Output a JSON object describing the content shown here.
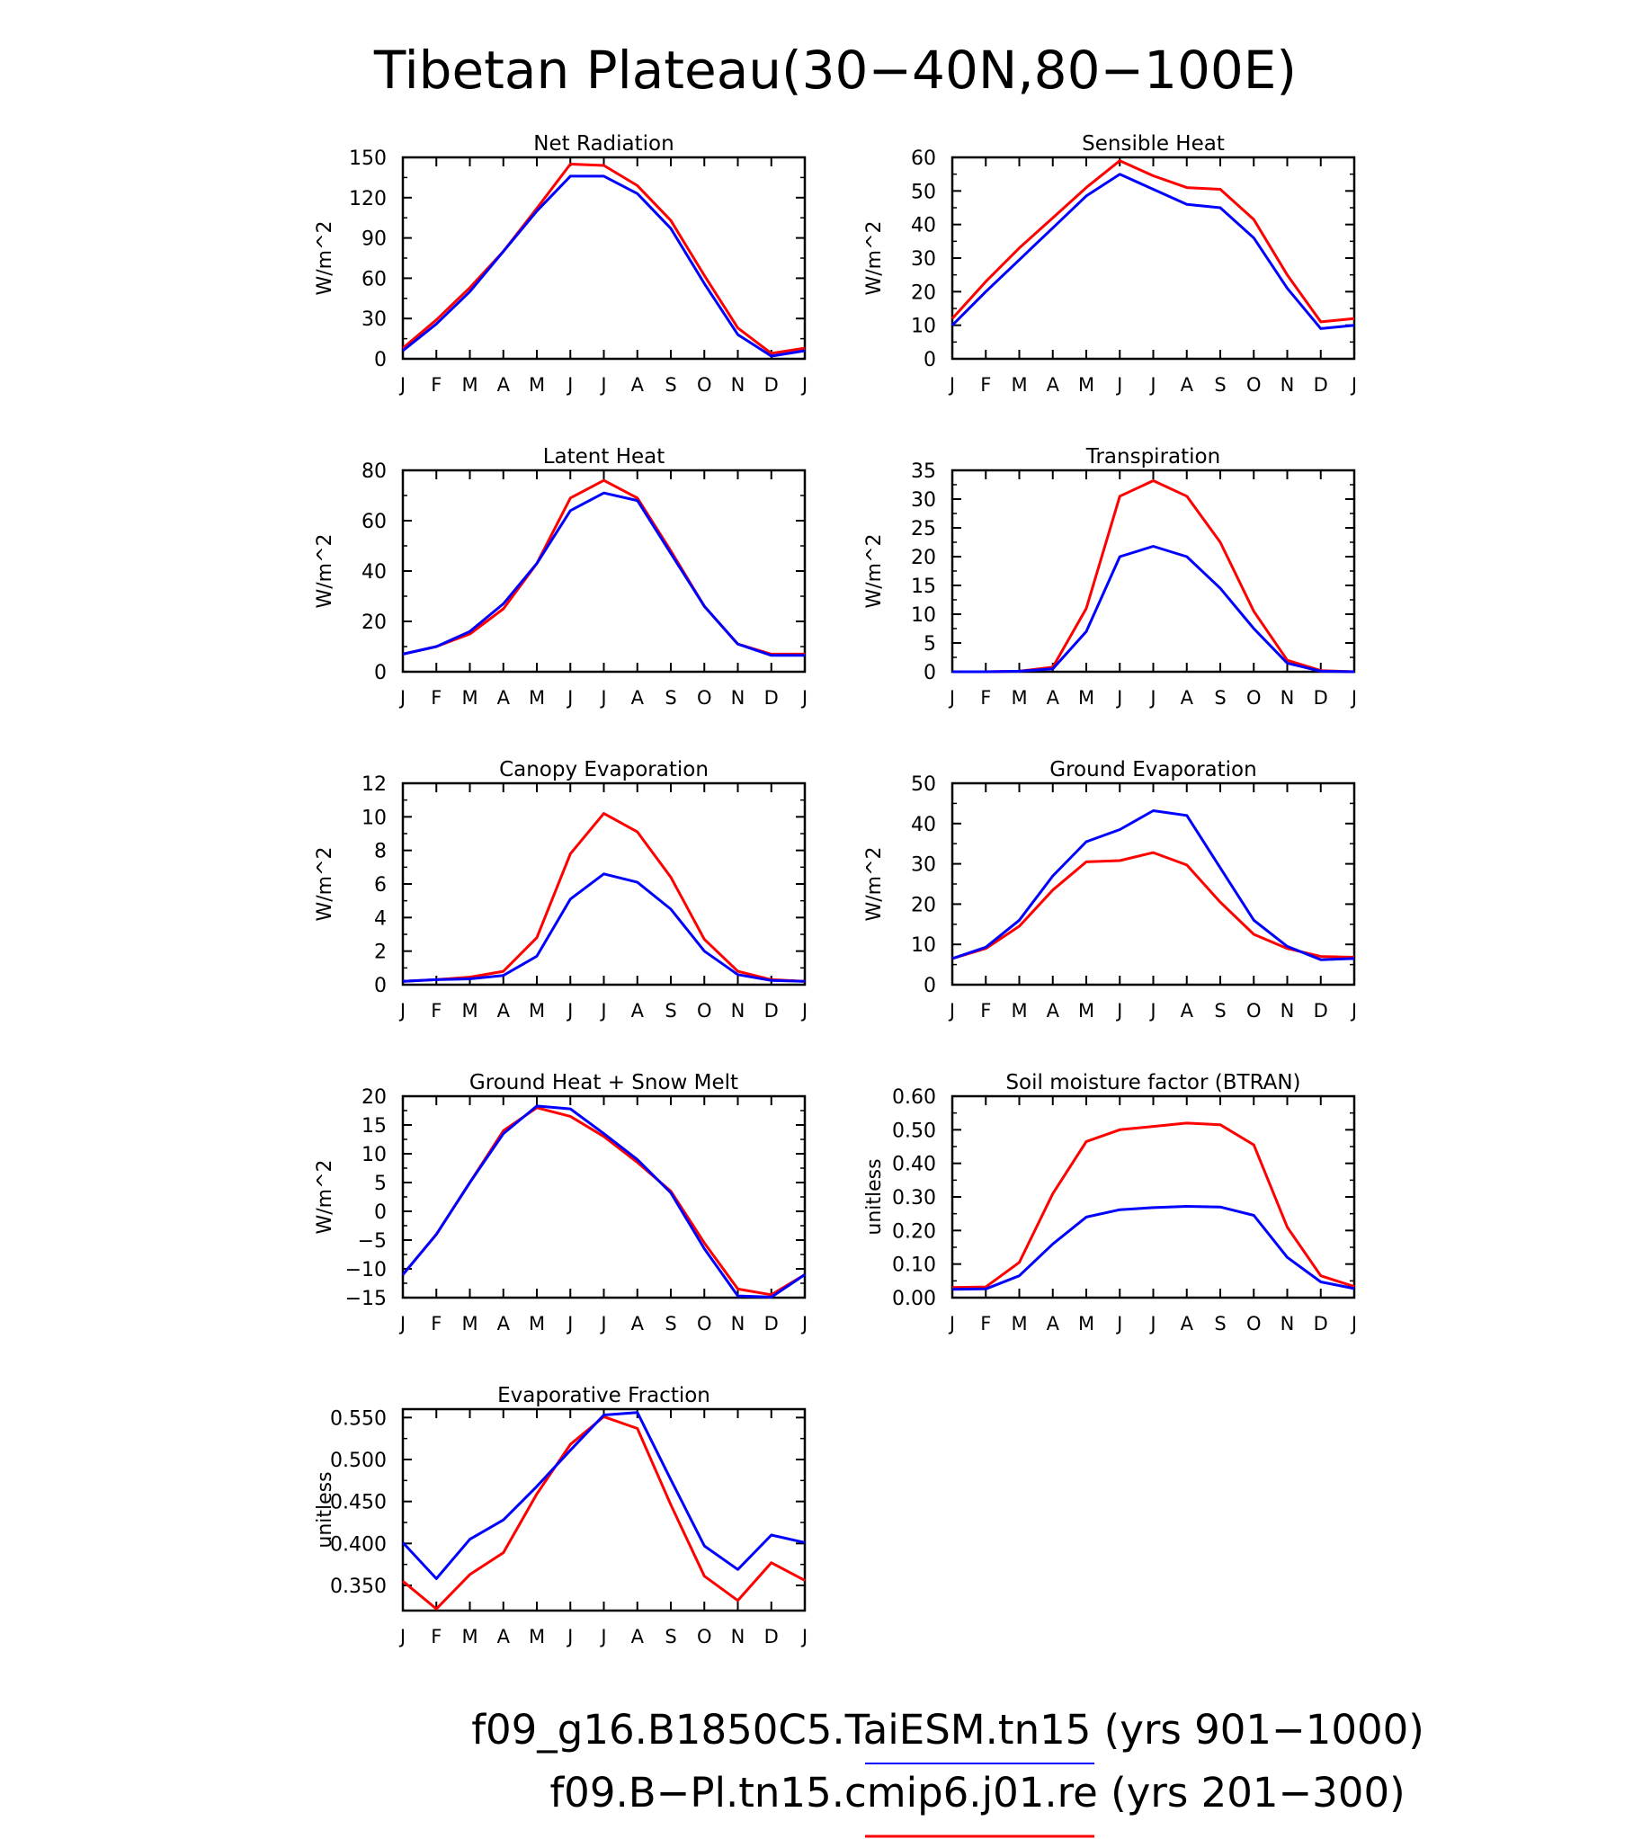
{
  "figure": {
    "title": "Tibetan Plateau(30−40N,80−100E)",
    "series_colors": {
      "taiesm": "#0000ff",
      "cmip6": "#ff0000"
    },
    "legend": [
      {
        "label": "f09_g16.B1850C5.TaiESM.tn15 (yrs 901−1000)",
        "color": "#0000ff"
      },
      {
        "label": "f09.B−Pl.tn15.cmip6.j01.re (yrs 201−300)",
        "color": "#ff0000"
      }
    ]
  },
  "chart_data": [
    {
      "type": "line",
      "title": "Net Radiation",
      "ylabel": "W/m^2",
      "ylim": [
        0,
        150
      ],
      "yticks": [
        "0",
        "30",
        "60",
        "90",
        "120",
        "150"
      ],
      "categories": [
        "J",
        "F",
        "M",
        "A",
        "M",
        "J",
        "J",
        "A",
        "S",
        "O",
        "N",
        "D",
        "J"
      ],
      "series": [
        {
          "color": "#ff0000",
          "values": [
            8,
            29,
            53,
            80,
            112,
            145,
            144,
            129,
            103,
            62,
            23,
            4,
            8
          ]
        },
        {
          "color": "#0000ff",
          "values": [
            6,
            26,
            50,
            80,
            110,
            136,
            136,
            123,
            97,
            56,
            18,
            2,
            6
          ]
        }
      ]
    },
    {
      "type": "line",
      "title": "Sensible Heat",
      "ylabel": "W/m^2",
      "ylim": [
        0,
        60
      ],
      "yticks": [
        "0",
        "10",
        "20",
        "30",
        "40",
        "50",
        "60"
      ],
      "categories": [
        "J",
        "F",
        "M",
        "A",
        "M",
        "J",
        "J",
        "A",
        "S",
        "O",
        "N",
        "D",
        "J"
      ],
      "series": [
        {
          "color": "#ff0000",
          "values": [
            12,
            23,
            33,
            42,
            51,
            59,
            54.5,
            51,
            50.5,
            41.5,
            25,
            11,
            12
          ]
        },
        {
          "color": "#0000ff",
          "values": [
            10,
            20,
            29.5,
            39,
            48.5,
            55,
            50.5,
            46,
            45,
            36,
            21,
            9,
            10
          ]
        }
      ]
    },
    {
      "type": "line",
      "title": "Latent Heat",
      "ylabel": "W/m^2",
      "ylim": [
        0,
        80
      ],
      "yticks": [
        "0",
        "20",
        "40",
        "60",
        "80"
      ],
      "categories": [
        "J",
        "F",
        "M",
        "A",
        "M",
        "J",
        "J",
        "A",
        "S",
        "O",
        "N",
        "D",
        "J"
      ],
      "series": [
        {
          "color": "#ff0000",
          "values": [
            7,
            10,
            15,
            25,
            43,
            69,
            76,
            69,
            48,
            26,
            11,
            7,
            7
          ]
        },
        {
          "color": "#0000ff",
          "values": [
            7,
            10,
            16,
            27,
            43,
            64,
            71,
            68,
            47,
            26,
            11,
            6.5,
            6.5
          ]
        }
      ]
    },
    {
      "type": "line",
      "title": "Transpiration",
      "ylabel": "W/m^2",
      "ylim": [
        0,
        35
      ],
      "yticks": [
        "0",
        "5",
        "10",
        "15",
        "20",
        "25",
        "30",
        "35"
      ],
      "categories": [
        "J",
        "F",
        "M",
        "A",
        "M",
        "J",
        "J",
        "A",
        "S",
        "O",
        "N",
        "D",
        "J"
      ],
      "series": [
        {
          "color": "#ff0000",
          "values": [
            0,
            0,
            0.1,
            0.8,
            11,
            30.5,
            33.2,
            30.5,
            22.5,
            10.5,
            2,
            0.2,
            0
          ]
        },
        {
          "color": "#0000ff",
          "values": [
            0,
            0,
            0.1,
            0.5,
            7,
            20,
            21.8,
            20,
            14.5,
            7.5,
            1.5,
            0.1,
            0
          ]
        }
      ]
    },
    {
      "type": "line",
      "title": "Canopy Evaporation",
      "ylabel": "W/m^2",
      "ylim": [
        0,
        12
      ],
      "yticks": [
        "0",
        "2",
        "4",
        "6",
        "8",
        "10",
        "12"
      ],
      "categories": [
        "J",
        "F",
        "M",
        "A",
        "M",
        "J",
        "J",
        "A",
        "S",
        "O",
        "N",
        "D",
        "J"
      ],
      "series": [
        {
          "color": "#ff0000",
          "values": [
            0.2,
            0.3,
            0.45,
            0.8,
            2.8,
            7.8,
            10.2,
            9.1,
            6.4,
            2.7,
            0.8,
            0.3,
            0.2
          ]
        },
        {
          "color": "#0000ff",
          "values": [
            0.2,
            0.3,
            0.35,
            0.55,
            1.7,
            5.1,
            6.6,
            6.1,
            4.5,
            2.0,
            0.6,
            0.25,
            0.2
          ]
        }
      ]
    },
    {
      "type": "line",
      "title": "Ground Evaporation",
      "ylabel": "W/m^2",
      "ylim": [
        0,
        50
      ],
      "yticks": [
        "0",
        "10",
        "20",
        "30",
        "40",
        "50"
      ],
      "categories": [
        "J",
        "F",
        "M",
        "A",
        "M",
        "J",
        "J",
        "A",
        "S",
        "O",
        "N",
        "D",
        "J"
      ],
      "series": [
        {
          "color": "#ff0000",
          "values": [
            6.5,
            9,
            14.5,
            23.5,
            30.5,
            30.8,
            32.8,
            29.7,
            20.5,
            12.5,
            9,
            7,
            6.8
          ]
        },
        {
          "color": "#0000ff",
          "values": [
            6.5,
            9.3,
            16,
            27,
            35.5,
            38.5,
            43.2,
            42,
            29,
            16,
            9.5,
            6.2,
            6.5
          ]
        }
      ]
    },
    {
      "type": "line",
      "title": "Ground Heat + Snow Melt",
      "ylabel": "W/m^2",
      "ylim": [
        -15,
        20
      ],
      "yticks": [
        "−15",
        "−10",
        "−5",
        "0",
        "5",
        "10",
        "15",
        "20"
      ],
      "categories": [
        "J",
        "F",
        "M",
        "A",
        "M",
        "J",
        "J",
        "A",
        "S",
        "O",
        "N",
        "D",
        "J"
      ],
      "series": [
        {
          "color": "#ff0000",
          "values": [
            -11,
            -4,
            5,
            14,
            18,
            16.5,
            13,
            8.5,
            3.5,
            -5.5,
            -13.5,
            -14.5,
            -11
          ]
        },
        {
          "color": "#0000ff",
          "values": [
            -11,
            -4,
            5,
            13.5,
            18.3,
            17.8,
            13.5,
            9,
            3.2,
            -6.5,
            -14.7,
            -14.9,
            -11
          ]
        }
      ]
    },
    {
      "type": "line",
      "title": "Soil moisture factor (BTRAN)",
      "ylabel": "unitless",
      "ylim": [
        0,
        0.6
      ],
      "yticks": [
        "0.00",
        "0.10",
        "0.20",
        "0.30",
        "0.40",
        "0.50",
        "0.60"
      ],
      "categories": [
        "J",
        "F",
        "M",
        "A",
        "M",
        "J",
        "J",
        "A",
        "S",
        "O",
        "N",
        "D",
        "J"
      ],
      "series": [
        {
          "color": "#ff0000",
          "values": [
            0.03,
            0.032,
            0.105,
            0.31,
            0.465,
            0.5,
            0.51,
            0.52,
            0.515,
            0.455,
            0.21,
            0.065,
            0.033
          ]
        },
        {
          "color": "#0000ff",
          "values": [
            0.025,
            0.026,
            0.065,
            0.16,
            0.24,
            0.262,
            0.268,
            0.272,
            0.27,
            0.245,
            0.12,
            0.047,
            0.027
          ]
        }
      ]
    },
    {
      "type": "line",
      "title": "Evaporative Fraction",
      "ylabel": "unitless",
      "ylim": [
        0.32,
        0.56
      ],
      "yticks": [
        "0.350",
        "0.400",
        "0.450",
        "0.500",
        "0.550"
      ],
      "categories": [
        "J",
        "F",
        "M",
        "A",
        "M",
        "J",
        "J",
        "A",
        "S",
        "O",
        "N",
        "D",
        "J"
      ],
      "series": [
        {
          "color": "#ff0000",
          "values": [
            0.355,
            0.322,
            0.363,
            0.389,
            0.459,
            0.518,
            0.551,
            0.537,
            0.446,
            0.361,
            0.332,
            0.377,
            0.356
          ]
        },
        {
          "color": "#0000ff",
          "values": [
            0.401,
            0.358,
            0.405,
            0.428,
            0.468,
            0.511,
            0.553,
            0.556,
            0.476,
            0.397,
            0.369,
            0.41,
            0.401
          ]
        }
      ]
    }
  ]
}
